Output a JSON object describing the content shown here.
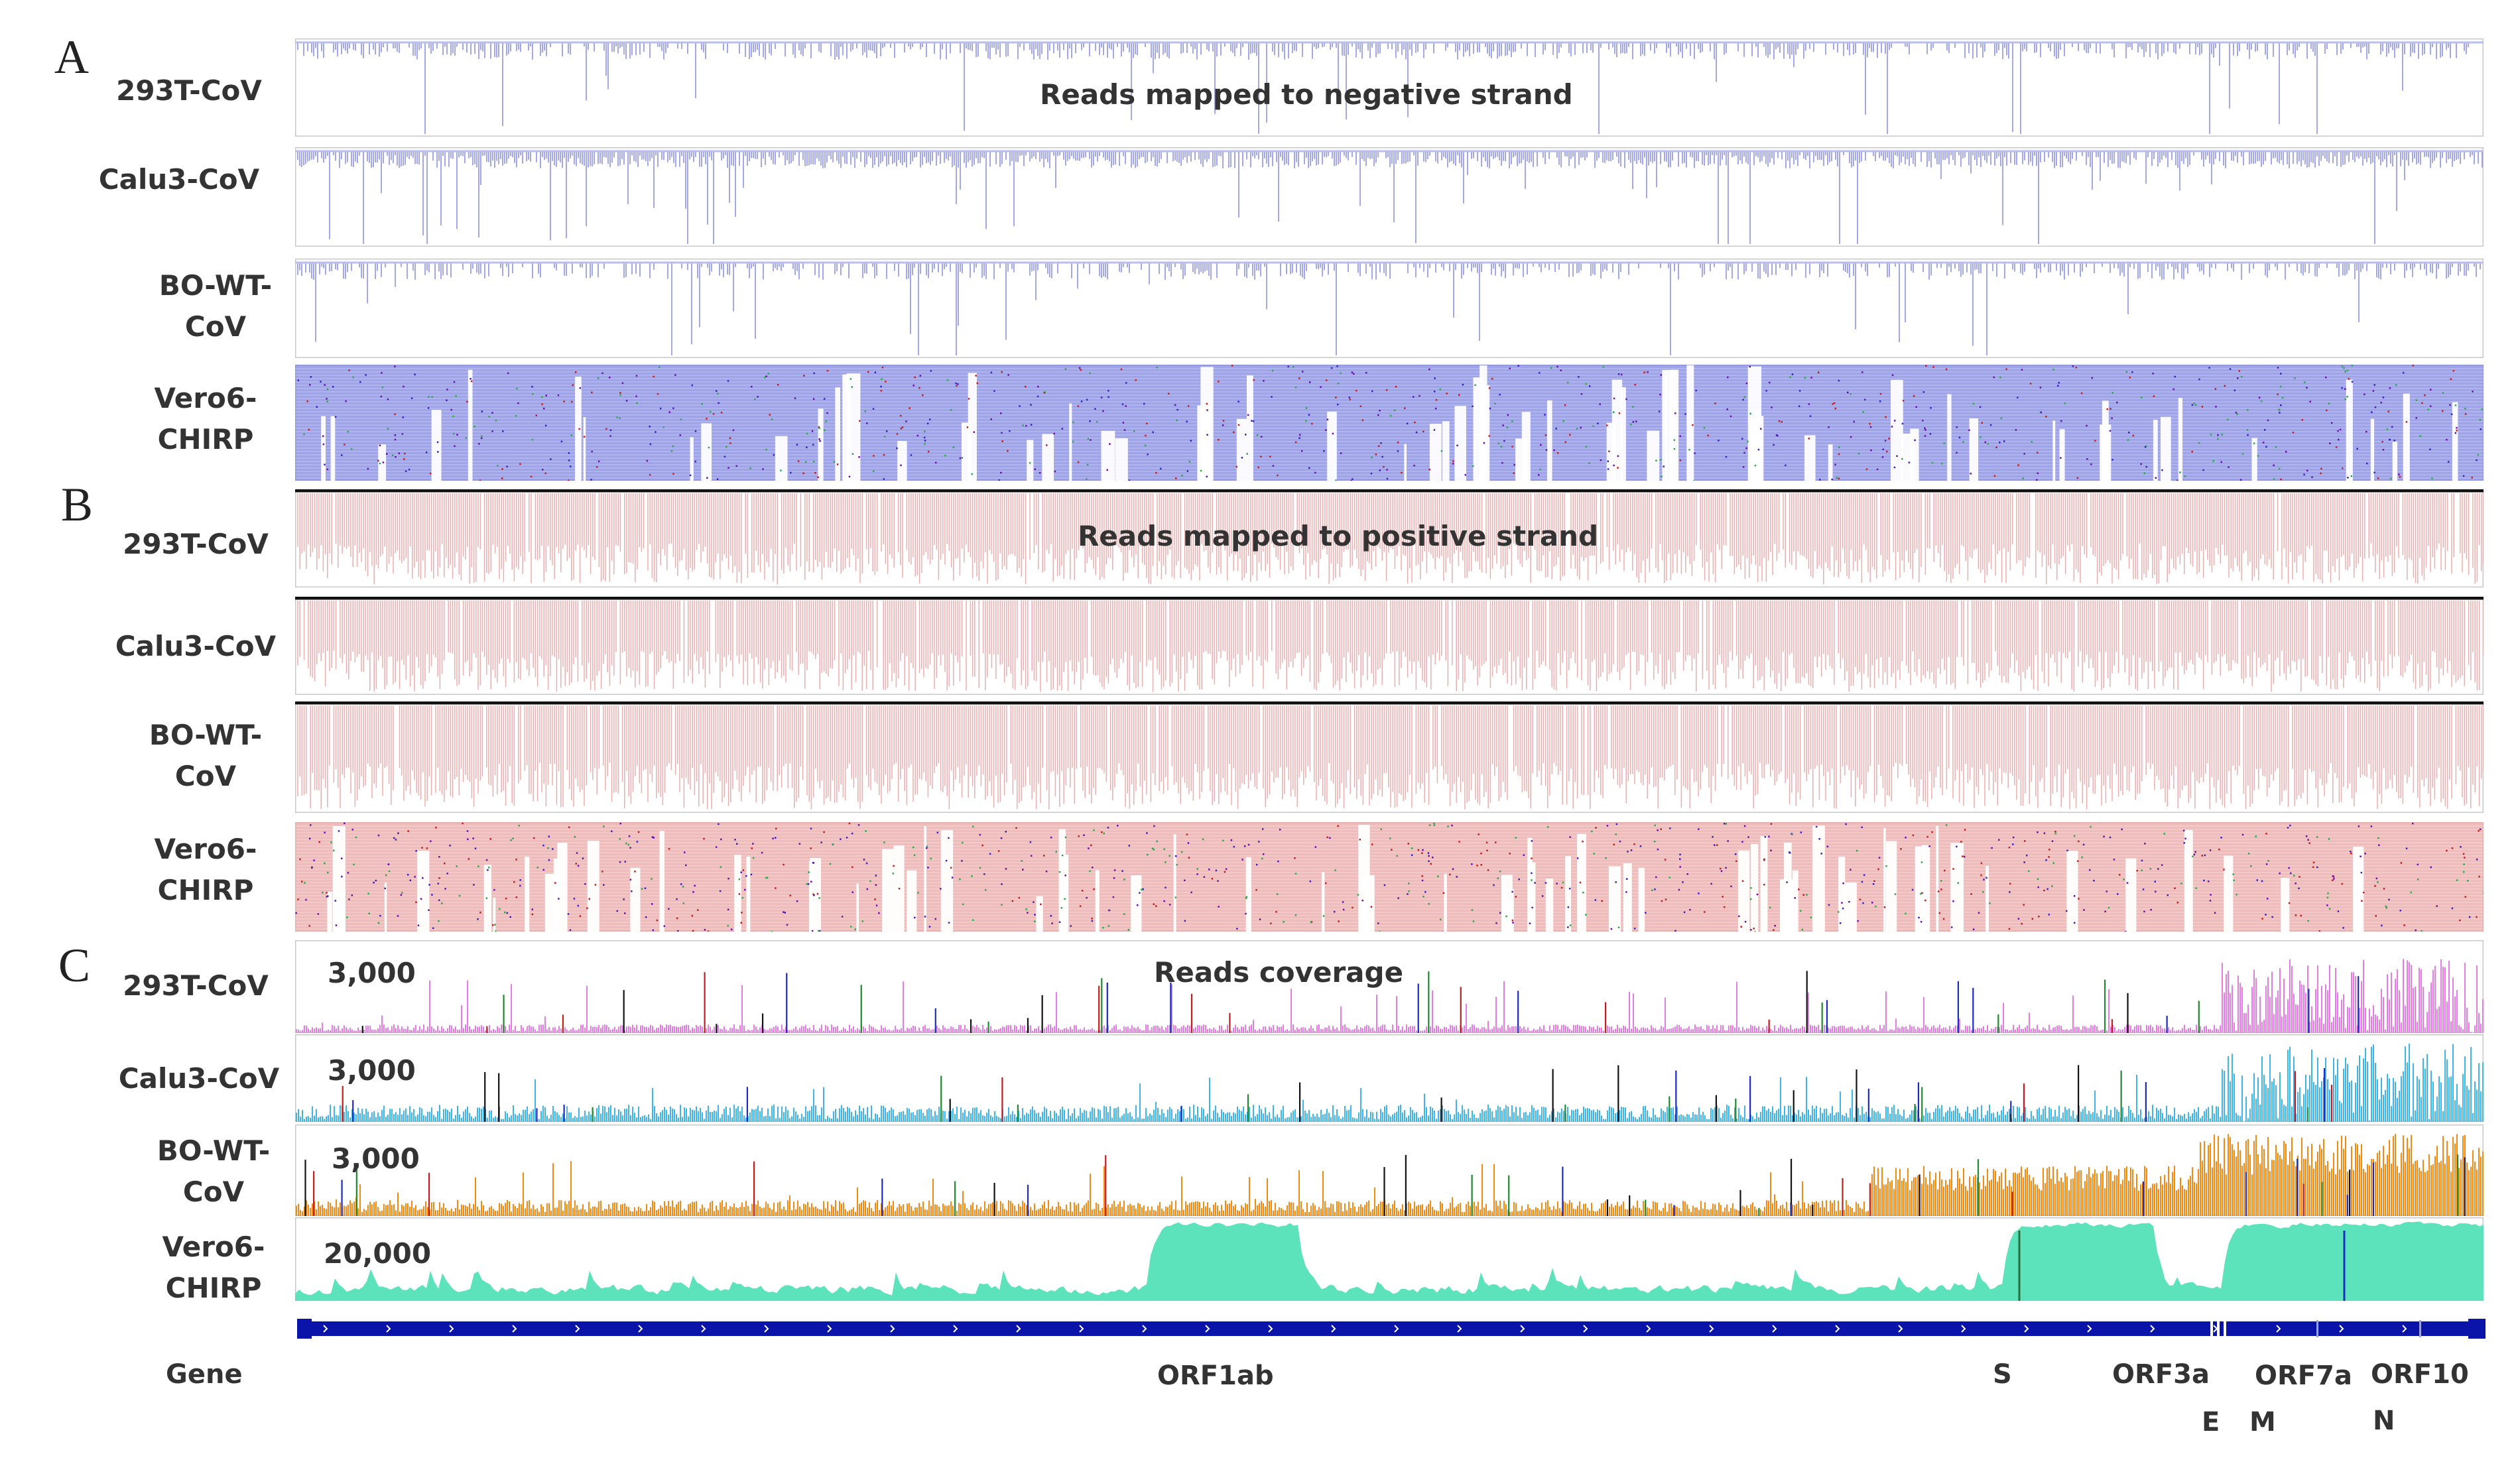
{
  "panels": {
    "A": {
      "letter": "A",
      "title": "Reads mapped to negative strand"
    },
    "B": {
      "letter": "B",
      "title": "Reads mapped to positive strand"
    },
    "C": {
      "letter": "C",
      "title": "Reads coverage"
    }
  },
  "samples": {
    "s1": "293T-CoV",
    "s2": "Calu3-CoV",
    "s3_line1": "BO-WT-",
    "s3_line2": "CoV",
    "s4_line1": "Vero6-",
    "s4_line2": "CHIRP"
  },
  "coverage_scales": {
    "s1": "3,000",
    "s2": "3,000",
    "s3": "3,000",
    "s4": "20,000"
  },
  "gene_track": {
    "label": "Gene",
    "genes": {
      "orf1ab": "ORF1ab",
      "s": "S",
      "orf3a": "ORF3a",
      "e": "E",
      "m": "M",
      "orf7a": "ORF7a",
      "orf10": "ORF10",
      "n": "N"
    }
  },
  "colors": {
    "negative_reads": "#8c93e0",
    "positive_reads": "#e8a0a0",
    "cov_293t": "#e57ce5",
    "cov_calu3": "#3fb4e6",
    "cov_bo": "#f08a10",
    "cov_vero": "#5de3bc",
    "gene": "#0a14a8"
  }
}
